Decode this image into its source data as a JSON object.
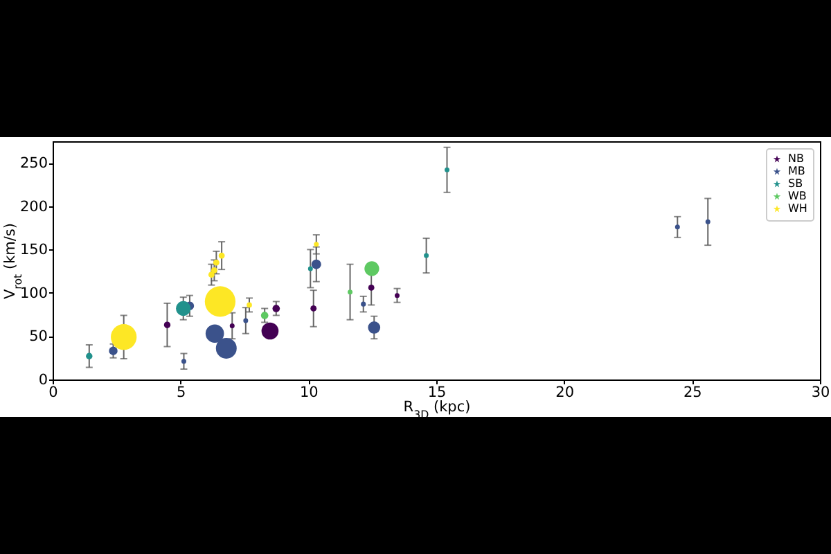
{
  "chart_data": {
    "type": "bubble",
    "xlabel": "R$_{3D}$ (kpc)",
    "ylabel": "V$_{rot}$ (km/s)",
    "xlim": [
      0,
      30
    ],
    "xticks": [
      0,
      5,
      10,
      15,
      20,
      25,
      30
    ],
    "ylim": [
      0,
      275
    ],
    "yticks": [
      0,
      50,
      100,
      150,
      200,
      250
    ],
    "legend": "top right",
    "marker": "circle",
    "series": [
      {
        "name": "NB",
        "color": "#440154",
        "x": [
          4.48,
          7.02,
          8.5,
          8.74,
          10.2,
          12.46,
          13.47
        ],
        "values": [
          63,
          62,
          56,
          82,
          82,
          106,
          97
        ],
        "sizes": [
          0.045,
          0.025,
          0.31,
          0.058,
          0.04,
          0.04,
          0.025
        ],
        "errors": [
          25,
          15,
          null,
          8,
          21,
          20,
          8
        ]
      },
      {
        "name": "MB",
        "color": "#3b528b",
        "x": [
          2.37,
          5.13,
          5.36,
          6.34,
          6.79,
          7.55,
          10.31,
          12.15,
          12.57,
          24.43,
          25.62
        ],
        "values": [
          33,
          21,
          85,
          53,
          36,
          68,
          133,
          87,
          60,
          176,
          182
        ],
        "sizes": [
          0.078,
          0.025,
          0.08,
          0.36,
          0.46,
          0.025,
          0.1,
          0.026,
          0.16,
          0.025,
          0.025
        ],
        "errors": [
          8,
          9,
          12,
          null,
          null,
          15,
          20,
          9,
          13,
          12,
          27
        ]
      },
      {
        "name": "SB",
        "color": "#21918c",
        "x": [
          1.43,
          5.11,
          10.08,
          14.61,
          15.42
        ],
        "values": [
          27,
          82,
          128,
          143,
          242
        ],
        "sizes": [
          0.045,
          0.23,
          0.025,
          0.025,
          0.025
        ],
        "errors": [
          13,
          13,
          22,
          20,
          26
        ]
      },
      {
        "name": "WB",
        "color": "#5ec962",
        "x": [
          8.29,
          11.63,
          12.48
        ],
        "values": [
          74,
          101,
          128
        ],
        "sizes": [
          0.058,
          0.025,
          0.23
        ],
        "errors": [
          8,
          32,
          null
        ]
      },
      {
        "name": "WH",
        "color": "#fde725",
        "x": [
          2.78,
          6.21,
          6.32,
          6.4,
          6.55,
          6.61,
          7.69,
          10.31
        ],
        "values": [
          49,
          121,
          126,
          135,
          90,
          143,
          86,
          156
        ],
        "sizes": [
          0.71,
          0.04,
          0.04,
          0.04,
          1,
          0.04,
          0.03,
          0.025
        ],
        "errors": [
          25,
          12,
          12,
          13,
          null,
          16,
          8,
          11
        ]
      }
    ]
  }
}
